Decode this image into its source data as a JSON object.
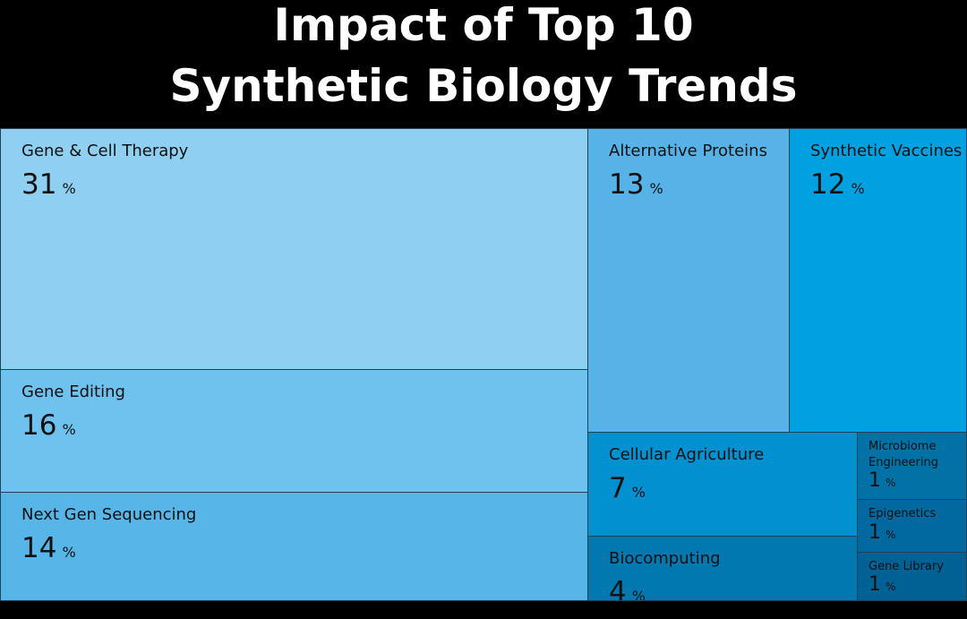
{
  "title": [
    "Impact of Top 10",
    "Synthetic Biology Trends"
  ],
  "chart_data": {
    "type": "treemap",
    "title": "Impact of Top 10 Synthetic Biology Trends",
    "unit": "%",
    "items": [
      {
        "name": "Gene & Cell Therapy",
        "value": 31,
        "color": "#8ecff2"
      },
      {
        "name": "Gene Editing",
        "value": 16,
        "color": "#6fc1ee"
      },
      {
        "name": "Next Gen Sequencing",
        "value": 14,
        "color": "#58b5e8"
      },
      {
        "name": "Alternative Proteins",
        "value": 13,
        "color": "#57b3e7"
      },
      {
        "name": "Synthetic Vaccines",
        "value": 12,
        "color": "#00a1e0"
      },
      {
        "name": "Cellular Agriculture",
        "value": 7,
        "color": "#0190d0"
      },
      {
        "name": "Biocomputing",
        "value": 4,
        "color": "#0179b0"
      },
      {
        "name": "Microbiome Engineering",
        "value": 1,
        "color": "#0171a6"
      },
      {
        "name": "Epigenetics",
        "value": 1,
        "color": "#0168a0"
      },
      {
        "name": "Gene Library",
        "value": 1,
        "color": "#016094"
      }
    ]
  }
}
